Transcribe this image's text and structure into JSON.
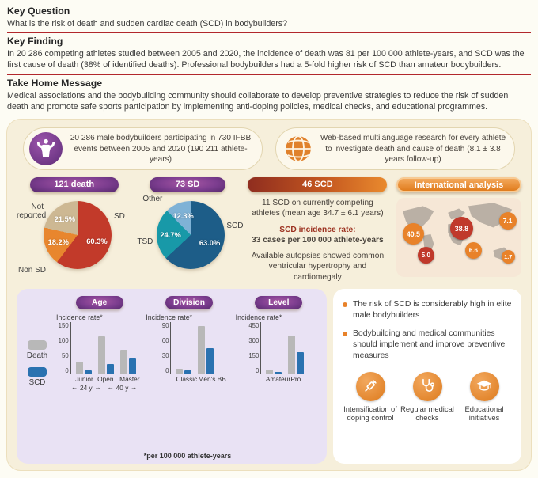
{
  "top": {
    "key_question": {
      "title": "Key Question",
      "text": "What is the risk of death and sudden cardiac death (SCD) in bodybuilders?"
    },
    "key_finding": {
      "title": "Key Finding",
      "text": "In 20 286 competing athletes studied between 2005 and 2020, the incidence of death was 81 per 100 000 athlete-years, and SCD was the first cause of death (38% of identified deaths). Professional bodybuilders had a 5-fold higher risk of SCD than amateur bodybuilders."
    },
    "take_home_message": {
      "title": "Take Home Message",
      "text": "Medical associations and the bodybuilding community should collaborate to develop preventive strategies to reduce the risk of sudden death and promote safe sports participation by implementing anti-doping policies, medical checks, and educational programmes."
    }
  },
  "badges": {
    "athletes": "20 286 male bodybuilders participating in 730 IFBB events between 2005 and 2020 (190 211 athlete-years)",
    "method": "Web-based multilanguage research for every athlete to investigate death and cause of death (8.1 ± 3.8 years follow-up)"
  },
  "scd_panel": {
    "title": "46 SCD",
    "line1": "11 SCD on currently competing athletes (mean age 34.7 ± 6.1 years)",
    "rate_label": "SCD incidence rate:",
    "rate_value": "33 cases per 100 000 athlete-years",
    "autopsy": "Available autopsies showed common ventricular hypertrophy and cardiomegaly"
  },
  "international": {
    "title": "International analysis",
    "values": [
      {
        "value": "40.5",
        "color": "#e8822a"
      },
      {
        "value": "38.8",
        "color": "#c0392b"
      },
      {
        "value": "7.1",
        "color": "#e8822a"
      },
      {
        "value": "6.6",
        "color": "#e8822a"
      },
      {
        "value": "5.0",
        "color": "#c0392b"
      },
      {
        "value": "1.7",
        "color": "#e8822a"
      }
    ]
  },
  "bar_section": {
    "legend": [
      {
        "label": "Death",
        "color": "#b8b8b8"
      },
      {
        "label": "SCD",
        "color": "#2a72b0"
      }
    ],
    "footnote": "*per 100 000 athlete-years"
  },
  "takeaways": {
    "bullets": [
      "The risk of SCD is considerably high in elite male bodybuilders",
      "Bodybuilding and medical communities should implement and improve preventive measures"
    ],
    "actions": [
      {
        "label": "Intensification of doping control",
        "icon": "syringe-icon"
      },
      {
        "label": "Regular medical checks",
        "icon": "stethoscope-icon"
      },
      {
        "label": "Educational initiatives",
        "icon": "education-icon"
      }
    ]
  },
  "chart_data": [
    {
      "id": "death_pie",
      "type": "pie",
      "title": "121 death",
      "unit": "%",
      "slices": [
        {
          "label": "SD",
          "value": 60.3,
          "color": "#c23a2a"
        },
        {
          "label": "Non SD",
          "value": 18.2,
          "color": "#e8862e"
        },
        {
          "label": "Not reported",
          "value": 21.5,
          "color": "#cdb893"
        }
      ]
    },
    {
      "id": "sd_pie",
      "type": "pie",
      "title": "73 SD",
      "unit": "%",
      "slices": [
        {
          "label": "SCD",
          "value": 63.0,
          "color": "#1d5d88"
        },
        {
          "label": "TSD",
          "value": 24.7,
          "color": "#1899a8"
        },
        {
          "label": "Other",
          "value": 12.3,
          "color": "#7fb2d6"
        }
      ]
    },
    {
      "id": "age_bars",
      "type": "bar",
      "title": "Age",
      "ylabel": "Incidence rate*",
      "ylim": [
        0,
        150
      ],
      "yticks": [
        0,
        50,
        100,
        150
      ],
      "categories": [
        "Junior",
        "Open",
        "Master"
      ],
      "series": [
        {
          "name": "Death",
          "values": [
            35,
            110,
            70
          ]
        },
        {
          "name": "SCD",
          "values": [
            10,
            28,
            45
          ]
        }
      ],
      "annotations": [
        "24 y",
        "40 y"
      ]
    },
    {
      "id": "division_bars",
      "type": "bar",
      "title": "Division",
      "ylabel": "Incidence rate*",
      "ylim": [
        0,
        90
      ],
      "yticks": [
        0,
        30,
        60,
        90
      ],
      "categories": [
        "Classic",
        "Men's BB"
      ],
      "series": [
        {
          "name": "Death",
          "values": [
            8,
            85
          ]
        },
        {
          "name": "SCD",
          "values": [
            5,
            45
          ]
        }
      ]
    },
    {
      "id": "level_bars",
      "type": "bar",
      "title": "Level",
      "ylabel": "Incidence rate*",
      "ylim": [
        0,
        450
      ],
      "yticks": [
        0,
        150,
        300,
        450
      ],
      "categories": [
        "Amateur",
        "Pro"
      ],
      "series": [
        {
          "name": "Death",
          "values": [
            35,
            340
          ]
        },
        {
          "name": "SCD",
          "values": [
            15,
            190
          ]
        }
      ]
    }
  ]
}
